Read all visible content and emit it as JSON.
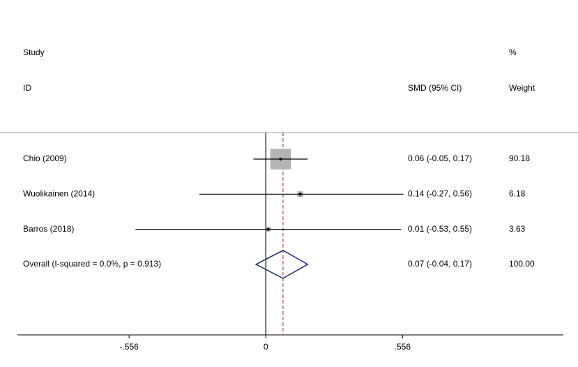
{
  "chart_data": {
    "type": "forest",
    "headers": {
      "study": [
        "Study",
        "ID"
      ],
      "effect": "SMD (95% CI)",
      "weight": [
        "%",
        "Weight"
      ]
    },
    "studies": [
      {
        "label": "Chio (2009)",
        "smd": 0.06,
        "ci": [
          -0.05,
          0.17
        ],
        "ci_label": "0.06 (-0.05, 0.17)",
        "weight": 90.18
      },
      {
        "label": "Wuolikainen (2014)",
        "smd": 0.14,
        "ci": [
          -0.27,
          0.56
        ],
        "ci_label": "0.14 (-0.27, 0.56)",
        "weight": 6.18
      },
      {
        "label": "Barros (2018)",
        "smd": 0.01,
        "ci": [
          -0.53,
          0.55
        ],
        "ci_label": "0.01 (-0.53, 0.55)",
        "weight": 3.63
      }
    ],
    "overall": {
      "label": "Overall  (I-squared = 0.0%, p = 0.913)",
      "smd": 0.07,
      "ci": [
        -0.04,
        0.17
      ],
      "ci_label": "0.07 (-0.04, 0.17)",
      "weight": {
        "value": 100,
        "label": "100.00"
      }
    },
    "xlim": [
      -1.01,
      1.21
    ],
    "xticks": [
      {
        "value": -0.556,
        "label": "-.556"
      },
      0,
      {
        "value": 0.556,
        "label": ".556"
      }
    ],
    "box_color": "#b4b4b4",
    "diamond_color": "#1a2a6c",
    "overall_line_color": "#a0282d"
  }
}
